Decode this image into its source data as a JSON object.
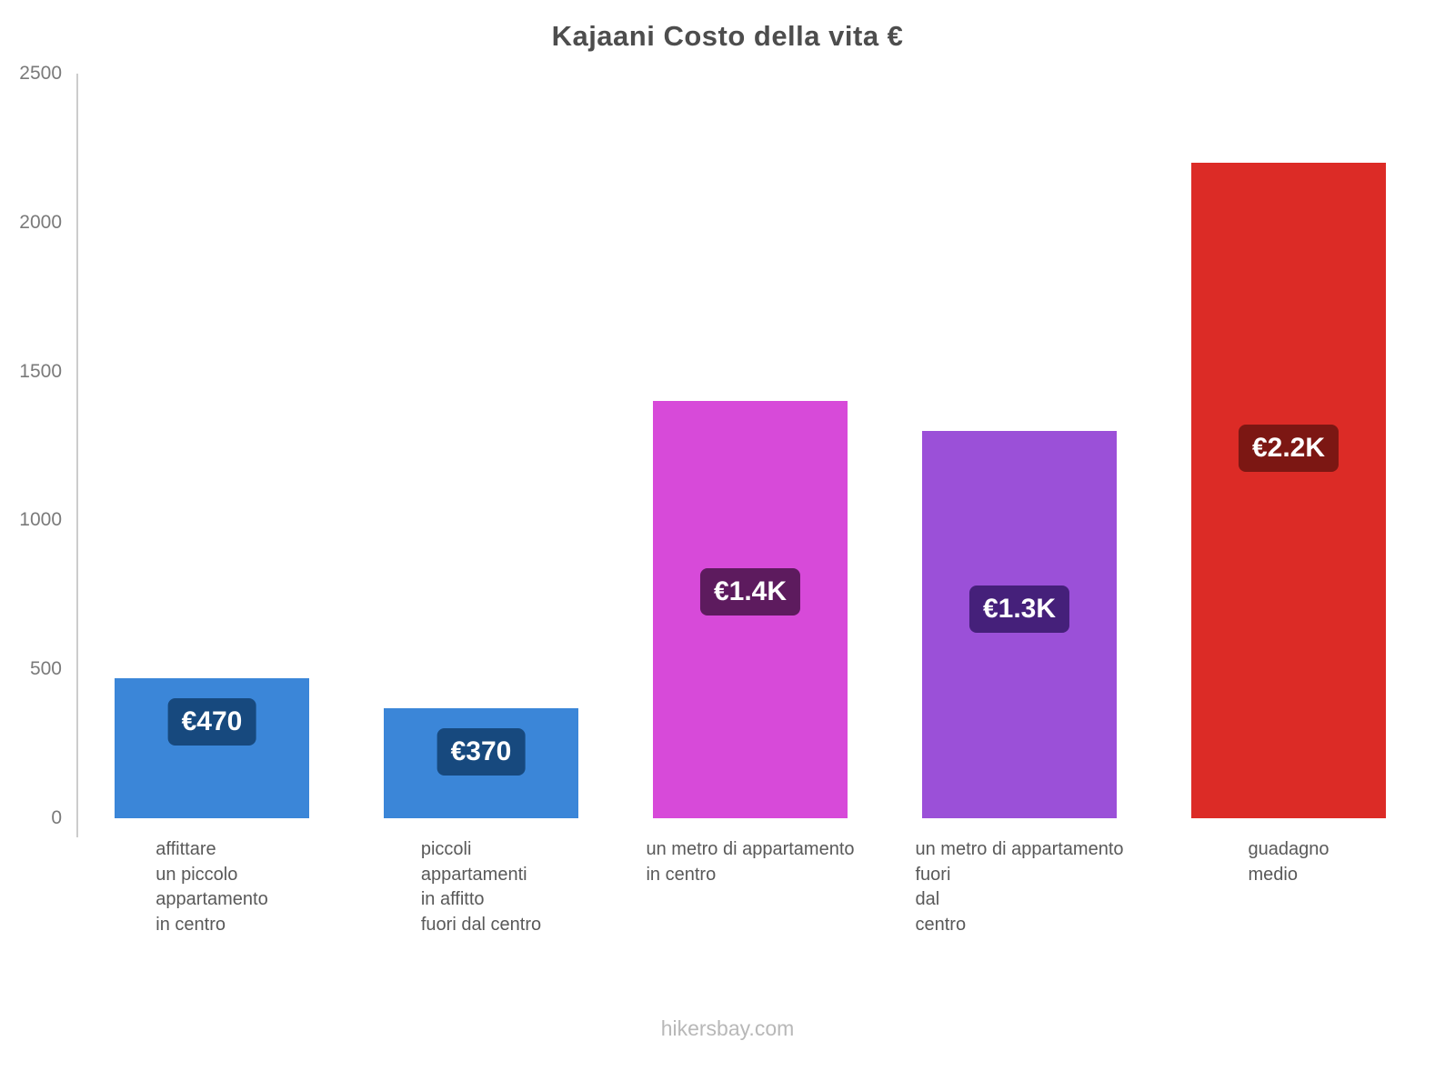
{
  "page": {
    "title": "Kajaani Costo della vita €",
    "footer": "hikersbay.com"
  },
  "chart_data": {
    "type": "bar",
    "title": "Kajaani Costo della vita €",
    "xlabel": "",
    "ylabel": "",
    "ylim": [
      0,
      2500
    ],
    "yticks": [
      "0",
      "500",
      "1000",
      "1500",
      "2000",
      "2500"
    ],
    "ytick_values": [
      0,
      500,
      1000,
      1500,
      2000,
      2500
    ],
    "grid": false,
    "legend": "none",
    "currency": "EUR",
    "bars": [
      {
        "category": "affittare un piccolo appartamento in centro",
        "category_lines": [
          "affittare",
          "un piccolo",
          "appartamento",
          "in centro"
        ],
        "value": 470,
        "label": "€470",
        "color": "#3b86d8",
        "label_bg": "#17497e"
      },
      {
        "category": "piccoli appartamenti in affitto fuori dal centro",
        "category_lines": [
          "piccoli",
          "appartamenti",
          "in affitto",
          "fuori dal centro"
        ],
        "value": 370,
        "label": "€370",
        "color": "#3b86d8",
        "label_bg": "#17497e"
      },
      {
        "category": "un metro di appartamento in centro",
        "category_lines": [
          "un metro di appartamento",
          "in centro"
        ],
        "value": 1400,
        "label": "€1.4K",
        "color": "#d74ad9",
        "label_bg": "#5d1b5e"
      },
      {
        "category": "un metro di appartamento fuori dal centro",
        "category_lines": [
          "un metro di appartamento",
          "fuori",
          "dal",
          "centro"
        ],
        "value": 1300,
        "label": "€1.3K",
        "color": "#9b50d8",
        "label_bg": "#45207a"
      },
      {
        "category": "guadagno medio",
        "category_lines": [
          "guadagno",
          "medio"
        ],
        "value": 2200,
        "label": "€2.2K",
        "color": "#dc2b26",
        "label_bg": "#7c1713"
      }
    ]
  }
}
